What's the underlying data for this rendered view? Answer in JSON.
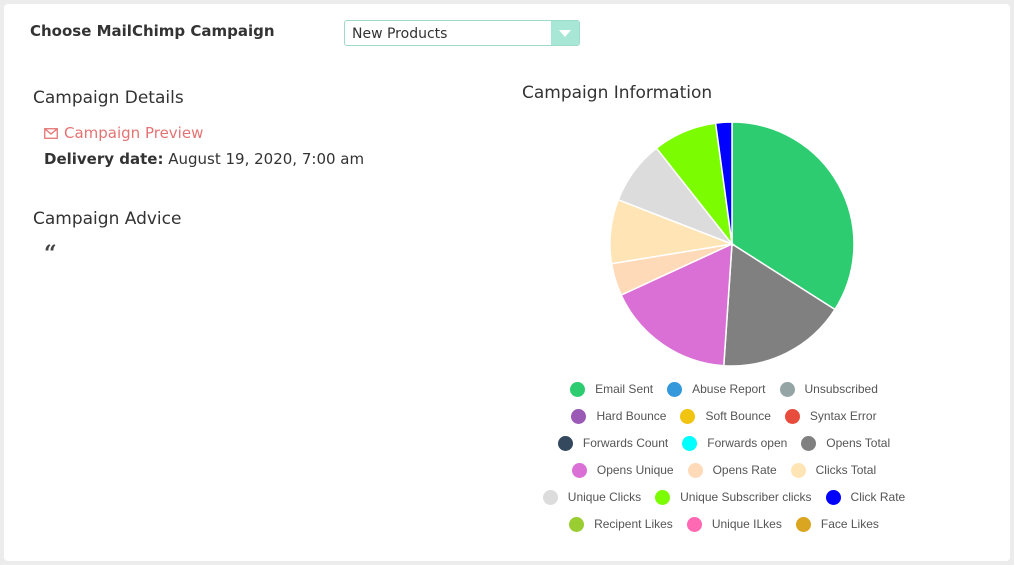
{
  "header": {
    "choose_label": "Choose MailChimp Campaign",
    "campaign_select": {
      "value": "New Products"
    }
  },
  "details": {
    "title": "Campaign Details",
    "preview_link": "Campaign Preview",
    "delivery_label": "Delivery date:",
    "delivery_value": "August 19, 2020, 7:00 am"
  },
  "advice": {
    "title": "Campaign Advice",
    "quote_glyph": "“"
  },
  "colors": {
    "preview_link": "#e57373",
    "select_border": "#9fd9c9",
    "select_arrow": "#a8e6d6"
  },
  "chart_data": {
    "type": "pie",
    "title": "Campaign Information",
    "legend_position": "bottom",
    "series": [
      {
        "name": "Email Sent",
        "value": 33.3,
        "color": "#2ecc71"
      },
      {
        "name": "Abuse Report",
        "value": 0,
        "color": "#3498db"
      },
      {
        "name": "Unsubscribed",
        "value": 0,
        "color": "#95a5a6"
      },
      {
        "name": "Hard Bounce",
        "value": 0,
        "color": "#9b59b6"
      },
      {
        "name": "Soft Bounce",
        "value": 0,
        "color": "#f1c40f"
      },
      {
        "name": "Syntax Error",
        "value": 0,
        "color": "#e74c3c"
      },
      {
        "name": "Forwards Count",
        "value": 0,
        "color": "#34495e"
      },
      {
        "name": "Forwards open",
        "value": 0,
        "color": "#00ffff"
      },
      {
        "name": "Opens Total",
        "value": 16.7,
        "color": "#808080"
      },
      {
        "name": "Opens Unique",
        "value": 16.7,
        "color": "#da70d6"
      },
      {
        "name": "Opens Rate",
        "value": 4.2,
        "color": "#ffdab9"
      },
      {
        "name": "Clicks Total",
        "value": 8.3,
        "color": "#ffe4b5"
      },
      {
        "name": "Unique Clicks",
        "value": 8.3,
        "color": "#dcdcdc"
      },
      {
        "name": "Unique Subscriber clicks",
        "value": 8.3,
        "color": "#7cfc00"
      },
      {
        "name": "Click Rate",
        "value": 2.1,
        "color": "#0000ff"
      },
      {
        "name": "Recipent Likes",
        "value": 0,
        "color": "#9acd32"
      },
      {
        "name": "Unique ILkes",
        "value": 0,
        "color": "#ff69b4"
      },
      {
        "name": "Face Likes",
        "value": 0,
        "color": "#daa520"
      }
    ]
  }
}
